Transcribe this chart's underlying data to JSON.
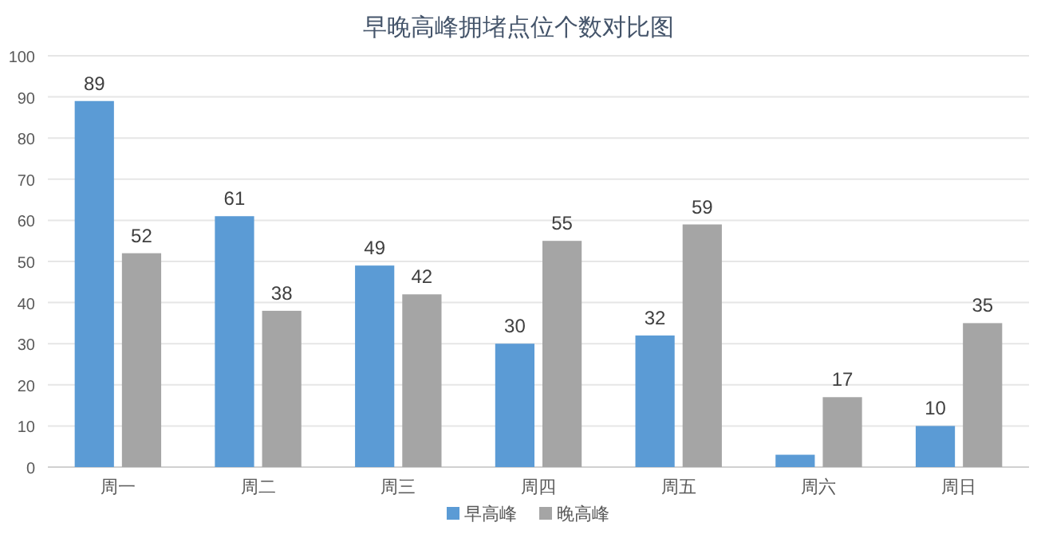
{
  "chart_data": {
    "type": "bar",
    "title": "早晚高峰拥堵点位个数对比图",
    "categories": [
      "周一",
      "周二",
      "周三",
      "周四",
      "周五",
      "周六",
      "周日"
    ],
    "series": [
      {
        "name": "早高峰",
        "color": "#5b9bd5",
        "values": [
          89,
          61,
          49,
          30,
          32,
          3,
          10
        ],
        "value_labels": [
          "89",
          "61",
          "49",
          "30",
          "32",
          null,
          "10"
        ]
      },
      {
        "name": "晚高峰",
        "color": "#a5a5a5",
        "values": [
          52,
          38,
          42,
          55,
          59,
          17,
          35
        ],
        "value_labels": [
          "52",
          "38",
          "42",
          "55",
          "59",
          "17",
          "35"
        ]
      }
    ],
    "ylim": [
      0,
      100
    ],
    "yticks": [
      0,
      10,
      20,
      30,
      40,
      50,
      60,
      70,
      80,
      90,
      100
    ],
    "grid": "y",
    "legend": "bottom"
  }
}
